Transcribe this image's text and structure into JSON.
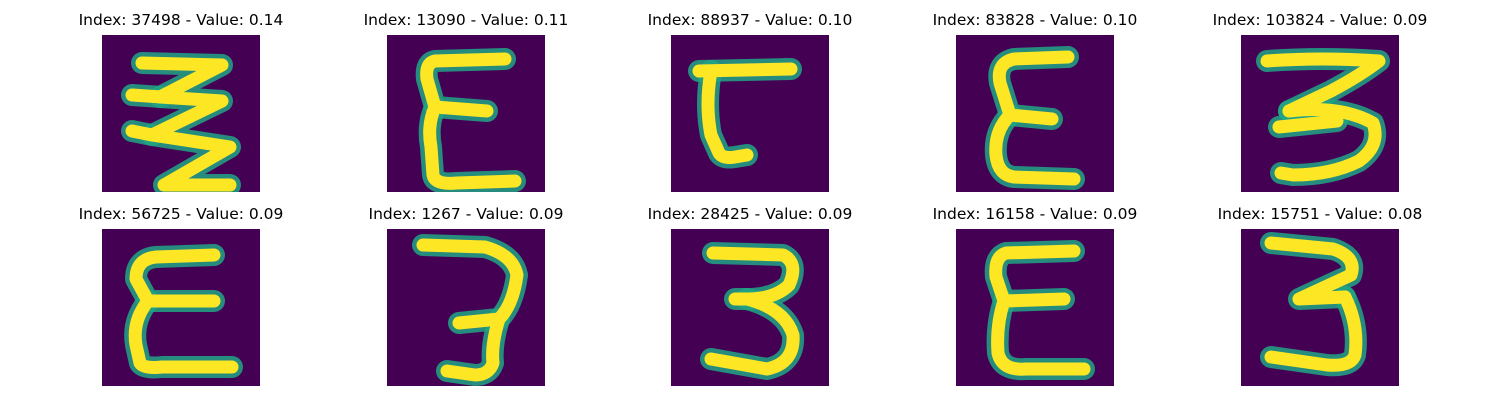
{
  "colors": {
    "background": "#440154",
    "edge": "#21a585",
    "stroke": "#fde725"
  },
  "panels": [
    {
      "title": "Index: 37498 - Value: 0.14",
      "glyph": "zigzag-3"
    },
    {
      "title": "Index: 13090 - Value: 0.11",
      "glyph": "e-shape"
    },
    {
      "title": "Index: 88937 - Value: 0.10",
      "glyph": "l-shape"
    },
    {
      "title": "Index: 83828 - Value: 0.10",
      "glyph": "e-shape"
    },
    {
      "title": "Index: 103824 - Value: 0.09",
      "glyph": "three"
    },
    {
      "title": "Index: 56725 - Value: 0.09",
      "glyph": "e-shape"
    },
    {
      "title": "Index: 1267 - Value: 0.09",
      "glyph": "three"
    },
    {
      "title": "Index: 28425 - Value: 0.09",
      "glyph": "three"
    },
    {
      "title": "Index: 16158 - Value: 0.09",
      "glyph": "e-shape"
    },
    {
      "title": "Index: 15751 - Value: 0.08",
      "glyph": "three"
    }
  ]
}
